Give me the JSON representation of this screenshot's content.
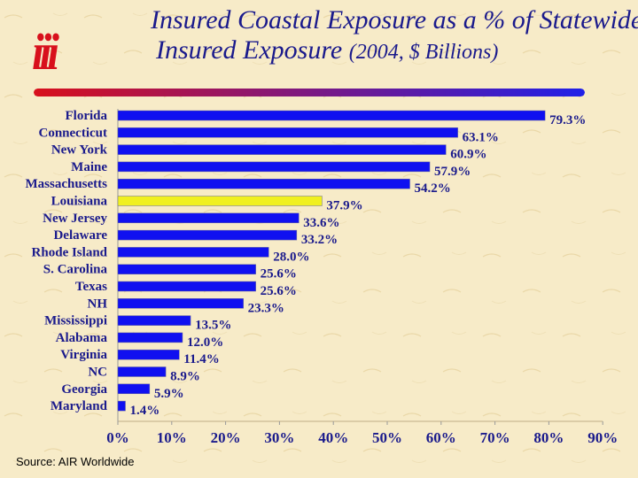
{
  "title": {
    "line1": "Insured Coastal Exposure as a % of Statewide",
    "line2_main": "Insured Exposure",
    "line2_sub": "(2004, $ Billions)"
  },
  "logo": {
    "text": "iii",
    "color": "#d8101c"
  },
  "source": "Source: AIR Worldwide",
  "colors": {
    "bar": "#1010f0",
    "highlight": "#f0f020",
    "text": "#1a1a8c",
    "divider_start": "#d8101c",
    "divider_end": "#2020e8"
  },
  "chart_data": {
    "type": "bar",
    "orientation": "horizontal",
    "categories": [
      "Florida",
      "Connecticut",
      "New York",
      "Maine",
      "Massachusetts",
      "Louisiana",
      "New Jersey",
      "Delaware",
      "Rhode Island",
      "S. Carolina",
      "Texas",
      "NH",
      "Mississippi",
      "Alabama",
      "Virginia",
      "NC",
      "Georgia",
      "Maryland"
    ],
    "values": [
      79.3,
      63.1,
      60.9,
      57.9,
      54.2,
      37.9,
      33.6,
      33.2,
      28.0,
      25.6,
      25.6,
      23.3,
      13.5,
      12.0,
      11.4,
      8.9,
      5.9,
      1.4
    ],
    "data_labels": [
      "79.3%",
      "63.1%",
      "60.9%",
      "57.9%",
      "54.2%",
      "37.9%",
      "33.6%",
      "33.2%",
      "28.0%",
      "25.6%",
      "25.6%",
      "23.3%",
      "13.5%",
      "12.0%",
      "11.4%",
      "8.9%",
      "5.9%",
      "1.4%"
    ],
    "highlight_category": "Louisiana",
    "xlim": [
      0,
      90
    ],
    "xticks": [
      0,
      10,
      20,
      30,
      40,
      50,
      60,
      70,
      80,
      90
    ],
    "xtick_labels": [
      "0%",
      "10%",
      "20%",
      "30%",
      "40%",
      "50%",
      "60%",
      "70%",
      "80%",
      "90%"
    ],
    "grid": false
  }
}
